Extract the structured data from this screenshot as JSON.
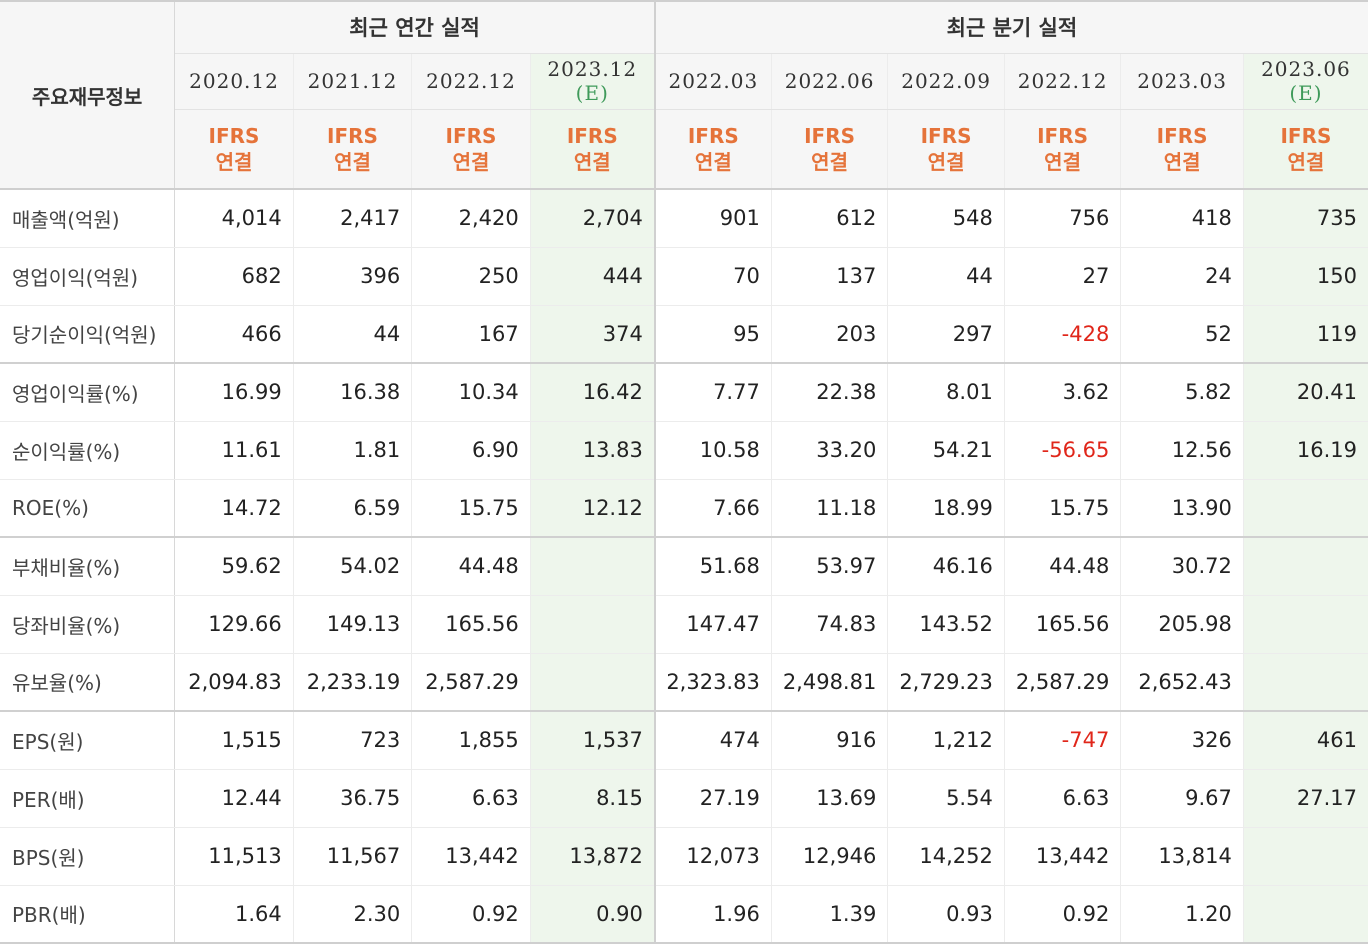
{
  "header": {
    "label_title": "주요재무정보",
    "annual_title": "최근 연간 실적",
    "quarter_title": "최근 분기 실적",
    "ifrs_line1": "IFRS",
    "ifrs_line2": "연결",
    "annual_periods": [
      {
        "period": "2020.12",
        "est": ""
      },
      {
        "period": "2021.12",
        "est": ""
      },
      {
        "period": "2022.12",
        "est": ""
      },
      {
        "period": "2023.12",
        "est": "(E)"
      }
    ],
    "quarter_periods": [
      {
        "period": "2022.03",
        "est": ""
      },
      {
        "period": "2022.06",
        "est": ""
      },
      {
        "period": "2022.09",
        "est": ""
      },
      {
        "period": "2022.12",
        "est": ""
      },
      {
        "period": "2023.03",
        "est": ""
      },
      {
        "period": "2023.06",
        "est": "(E)"
      }
    ]
  },
  "rows": [
    {
      "label": "매출액(억원)",
      "values": [
        "4,014",
        "2,417",
        "2,420",
        "2,704",
        "901",
        "612",
        "548",
        "756",
        "418",
        "735"
      ]
    },
    {
      "label": "영업이익(억원)",
      "values": [
        "682",
        "396",
        "250",
        "444",
        "70",
        "137",
        "44",
        "27",
        "24",
        "150"
      ]
    },
    {
      "label": "당기순이익(억원)",
      "values": [
        "466",
        "44",
        "167",
        "374",
        "95",
        "203",
        "297",
        "-428",
        "52",
        "119"
      ]
    },
    {
      "label": "영업이익률(%)",
      "values": [
        "16.99",
        "16.38",
        "10.34",
        "16.42",
        "7.77",
        "22.38",
        "8.01",
        "3.62",
        "5.82",
        "20.41"
      ]
    },
    {
      "label": "순이익률(%)",
      "values": [
        "11.61",
        "1.81",
        "6.90",
        "13.83",
        "10.58",
        "33.20",
        "54.21",
        "-56.65",
        "12.56",
        "16.19"
      ]
    },
    {
      "label": "ROE(%)",
      "values": [
        "14.72",
        "6.59",
        "15.75",
        "12.12",
        "7.66",
        "11.18",
        "18.99",
        "15.75",
        "13.90",
        ""
      ]
    },
    {
      "label": "부채비율(%)",
      "values": [
        "59.62",
        "54.02",
        "44.48",
        "",
        "51.68",
        "53.97",
        "46.16",
        "44.48",
        "30.72",
        ""
      ]
    },
    {
      "label": "당좌비율(%)",
      "values": [
        "129.66",
        "149.13",
        "165.56",
        "",
        "147.47",
        "74.83",
        "143.52",
        "165.56",
        "205.98",
        ""
      ]
    },
    {
      "label": "유보율(%)",
      "values": [
        "2,094.83",
        "2,233.19",
        "2,587.29",
        "",
        "2,323.83",
        "2,498.81",
        "2,729.23",
        "2,587.29",
        "2,652.43",
        ""
      ]
    },
    {
      "label": "EPS(원)",
      "values": [
        "1,515",
        "723",
        "1,855",
        "1,537",
        "474",
        "916",
        "1,212",
        "-747",
        "326",
        "461"
      ]
    },
    {
      "label": "PER(배)",
      "values": [
        "12.44",
        "36.75",
        "6.63",
        "8.15",
        "27.19",
        "13.69",
        "5.54",
        "6.63",
        "9.67",
        "27.17"
      ]
    },
    {
      "label": "BPS(원)",
      "values": [
        "11,513",
        "11,567",
        "13,442",
        "13,872",
        "12,073",
        "12,946",
        "14,252",
        "13,442",
        "13,814",
        ""
      ]
    },
    {
      "label": "PBR(배)",
      "values": [
        "1.64",
        "2.30",
        "0.92",
        "0.90",
        "1.96",
        "1.39",
        "0.93",
        "0.92",
        "1.20",
        ""
      ]
    }
  ],
  "colors": {
    "ifrs": "#e5733a",
    "estimate": "#3f9a5a",
    "negative": "#e0261a",
    "estimate_bg": "#eef6ec"
  }
}
